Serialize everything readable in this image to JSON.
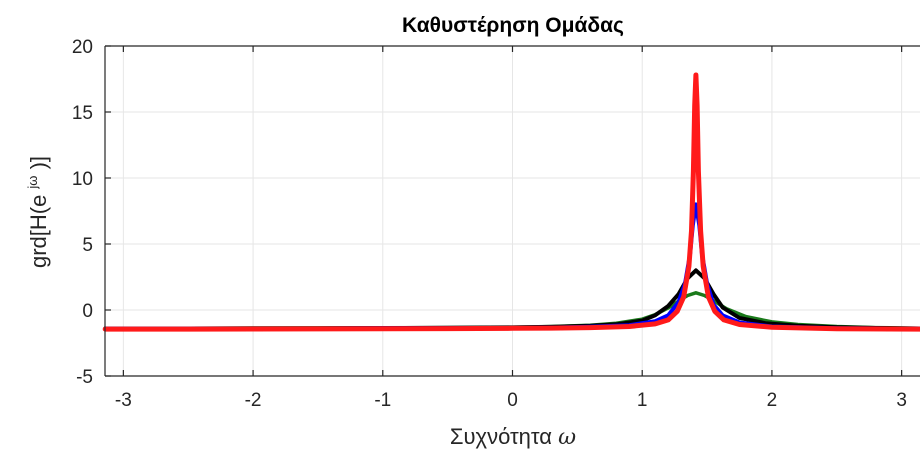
{
  "chart_data": {
    "type": "line",
    "title": "Καθυστέρηση Ομάδας",
    "xlabel_text": "Συχνότητα",
    "xlabel_symbol": "ω",
    "ylabel_prefix": "grd[H(e",
    "ylabel_sup": "jω",
    "ylabel_suffix": ")]",
    "xlim": [
      -3.1416,
      3.1416
    ],
    "ylim": [
      -5,
      20
    ],
    "xticks": [
      -3,
      -2,
      -1,
      0,
      1,
      2,
      3
    ],
    "yticks": [
      -5,
      0,
      5,
      10,
      15,
      20
    ],
    "grid": true,
    "series": [
      {
        "color": "#1a7a1a",
        "x": [
          -3.14,
          -2.5,
          -2.0,
          -1.5,
          -1.0,
          -0.5,
          0.0,
          0.3,
          0.6,
          0.8,
          1.0,
          1.1,
          1.2,
          1.3,
          1.35,
          1.414,
          1.48,
          1.55,
          1.65,
          1.8,
          2.0,
          2.2,
          2.5,
          2.8,
          3.14
        ],
        "y": [
          -1.38,
          -1.38,
          -1.37,
          -1.36,
          -1.35,
          -1.33,
          -1.3,
          -1.25,
          -1.15,
          -1.0,
          -0.7,
          -0.35,
          0.15,
          0.8,
          1.1,
          1.3,
          1.1,
          0.7,
          0.1,
          -0.5,
          -0.9,
          -1.1,
          -1.25,
          -1.33,
          -1.38
        ]
      },
      {
        "color": "#000000",
        "x": [
          -3.14,
          -2.5,
          -2.0,
          -1.5,
          -1.0,
          -0.5,
          0.0,
          0.3,
          0.6,
          0.8,
          1.0,
          1.1,
          1.2,
          1.28,
          1.35,
          1.414,
          1.48,
          1.55,
          1.62,
          1.75,
          1.95,
          2.2,
          2.5,
          2.8,
          3.14
        ],
        "y": [
          -1.4,
          -1.4,
          -1.39,
          -1.38,
          -1.37,
          -1.35,
          -1.32,
          -1.28,
          -1.2,
          -1.08,
          -0.8,
          -0.4,
          0.3,
          1.2,
          2.4,
          3.0,
          2.4,
          1.2,
          0.2,
          -0.6,
          -1.0,
          -1.2,
          -1.3,
          -1.36,
          -1.4
        ]
      },
      {
        "color": "#0000ff",
        "x": [
          -3.14,
          -2.5,
          -2.0,
          -1.5,
          -1.0,
          -0.5,
          0.0,
          0.3,
          0.6,
          0.9,
          1.1,
          1.2,
          1.28,
          1.33,
          1.37,
          1.39,
          1.414,
          1.44,
          1.46,
          1.5,
          1.55,
          1.62,
          1.75,
          2.0,
          2.5,
          3.14
        ],
        "y": [
          -1.42,
          -1.42,
          -1.41,
          -1.4,
          -1.39,
          -1.38,
          -1.36,
          -1.33,
          -1.27,
          -1.15,
          -0.85,
          -0.4,
          0.6,
          2.0,
          4.3,
          6.4,
          8.0,
          6.4,
          4.3,
          2.0,
          0.4,
          -0.4,
          -0.95,
          -1.25,
          -1.38,
          -1.42
        ]
      },
      {
        "color": "#ff1a1a",
        "x": [
          -3.14,
          -2.5,
          -2.0,
          -1.5,
          -1.0,
          -0.5,
          0.0,
          0.3,
          0.6,
          0.9,
          1.1,
          1.2,
          1.27,
          1.32,
          1.36,
          1.38,
          1.395,
          1.405,
          1.414,
          1.423,
          1.433,
          1.45,
          1.47,
          1.51,
          1.56,
          1.63,
          1.75,
          2.0,
          2.5,
          3.14
        ],
        "y": [
          -1.45,
          -1.45,
          -1.44,
          -1.43,
          -1.42,
          -1.41,
          -1.39,
          -1.37,
          -1.33,
          -1.25,
          -1.05,
          -0.75,
          -0.1,
          1.0,
          3.3,
          6.0,
          10.5,
          15.5,
          17.8,
          15.5,
          10.5,
          6.0,
          3.3,
          1.0,
          -0.1,
          -0.75,
          -1.1,
          -1.3,
          -1.42,
          -1.45
        ]
      }
    ]
  }
}
